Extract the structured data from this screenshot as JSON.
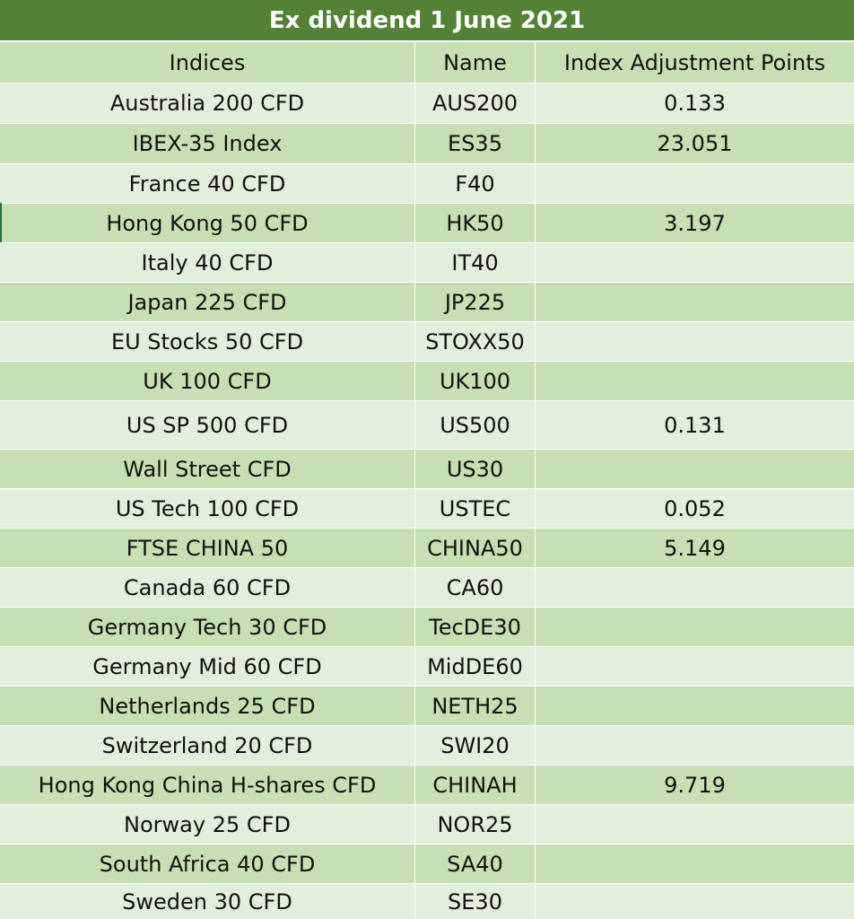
{
  "title": "Ex dividend 1 June 2021",
  "columns": [
    "Indices",
    "Name",
    "Index Adjustment Points"
  ],
  "rows": [
    {
      "index": "Australia 200 CFD",
      "name": "AUS200",
      "points": "0.133"
    },
    {
      "index": "IBEX-35 Index",
      "name": "ES35",
      "points": "23.051"
    },
    {
      "index": "France 40 CFD",
      "name": "F40",
      "points": ""
    },
    {
      "index": "Hong Kong 50 CFD",
      "name": "HK50",
      "points": "3.197"
    },
    {
      "index": "Italy 40 CFD",
      "name": "IT40",
      "points": ""
    },
    {
      "index": "Japan 225 CFD",
      "name": "JP225",
      "points": ""
    },
    {
      "index": "EU Stocks 50 CFD",
      "name": "STOXX50",
      "points": ""
    },
    {
      "index": "UK 100 CFD",
      "name": "UK100",
      "points": ""
    },
    {
      "index": "US SP 500 CFD",
      "name": "US500",
      "points": "0.131"
    },
    {
      "index": "Wall Street CFD",
      "name": "US30",
      "points": ""
    },
    {
      "index": "US Tech 100 CFD",
      "name": "USTEC",
      "points": "0.052"
    },
    {
      "index": "FTSE CHINA 50",
      "name": "CHINA50",
      "points": "5.149"
    },
    {
      "index": "Canada 60 CFD",
      "name": "CA60",
      "points": ""
    },
    {
      "index": "Germany Tech 30 CFD",
      "name": "TecDE30",
      "points": ""
    },
    {
      "index": "Germany Mid 60 CFD",
      "name": "MidDE60",
      "points": ""
    },
    {
      "index": "Netherlands 25 CFD",
      "name": "NETH25",
      "points": ""
    },
    {
      "index": "Switzerland 20 CFD",
      "name": "SWI20",
      "points": ""
    },
    {
      "index": "Hong Kong China H-shares CFD",
      "name": "CHINAH",
      "points": "9.719"
    },
    {
      "index": "Norway 25 CFD",
      "name": "NOR25",
      "points": ""
    },
    {
      "index": "South Africa 40 CFD",
      "name": "SA40",
      "points": ""
    },
    {
      "index": "Sweden 30 CFD",
      "name": "SE30",
      "points": ""
    }
  ],
  "colors": {
    "title_bg": "#538135",
    "row_light": "#e2efda",
    "row_dark": "#c6e0b4"
  }
}
